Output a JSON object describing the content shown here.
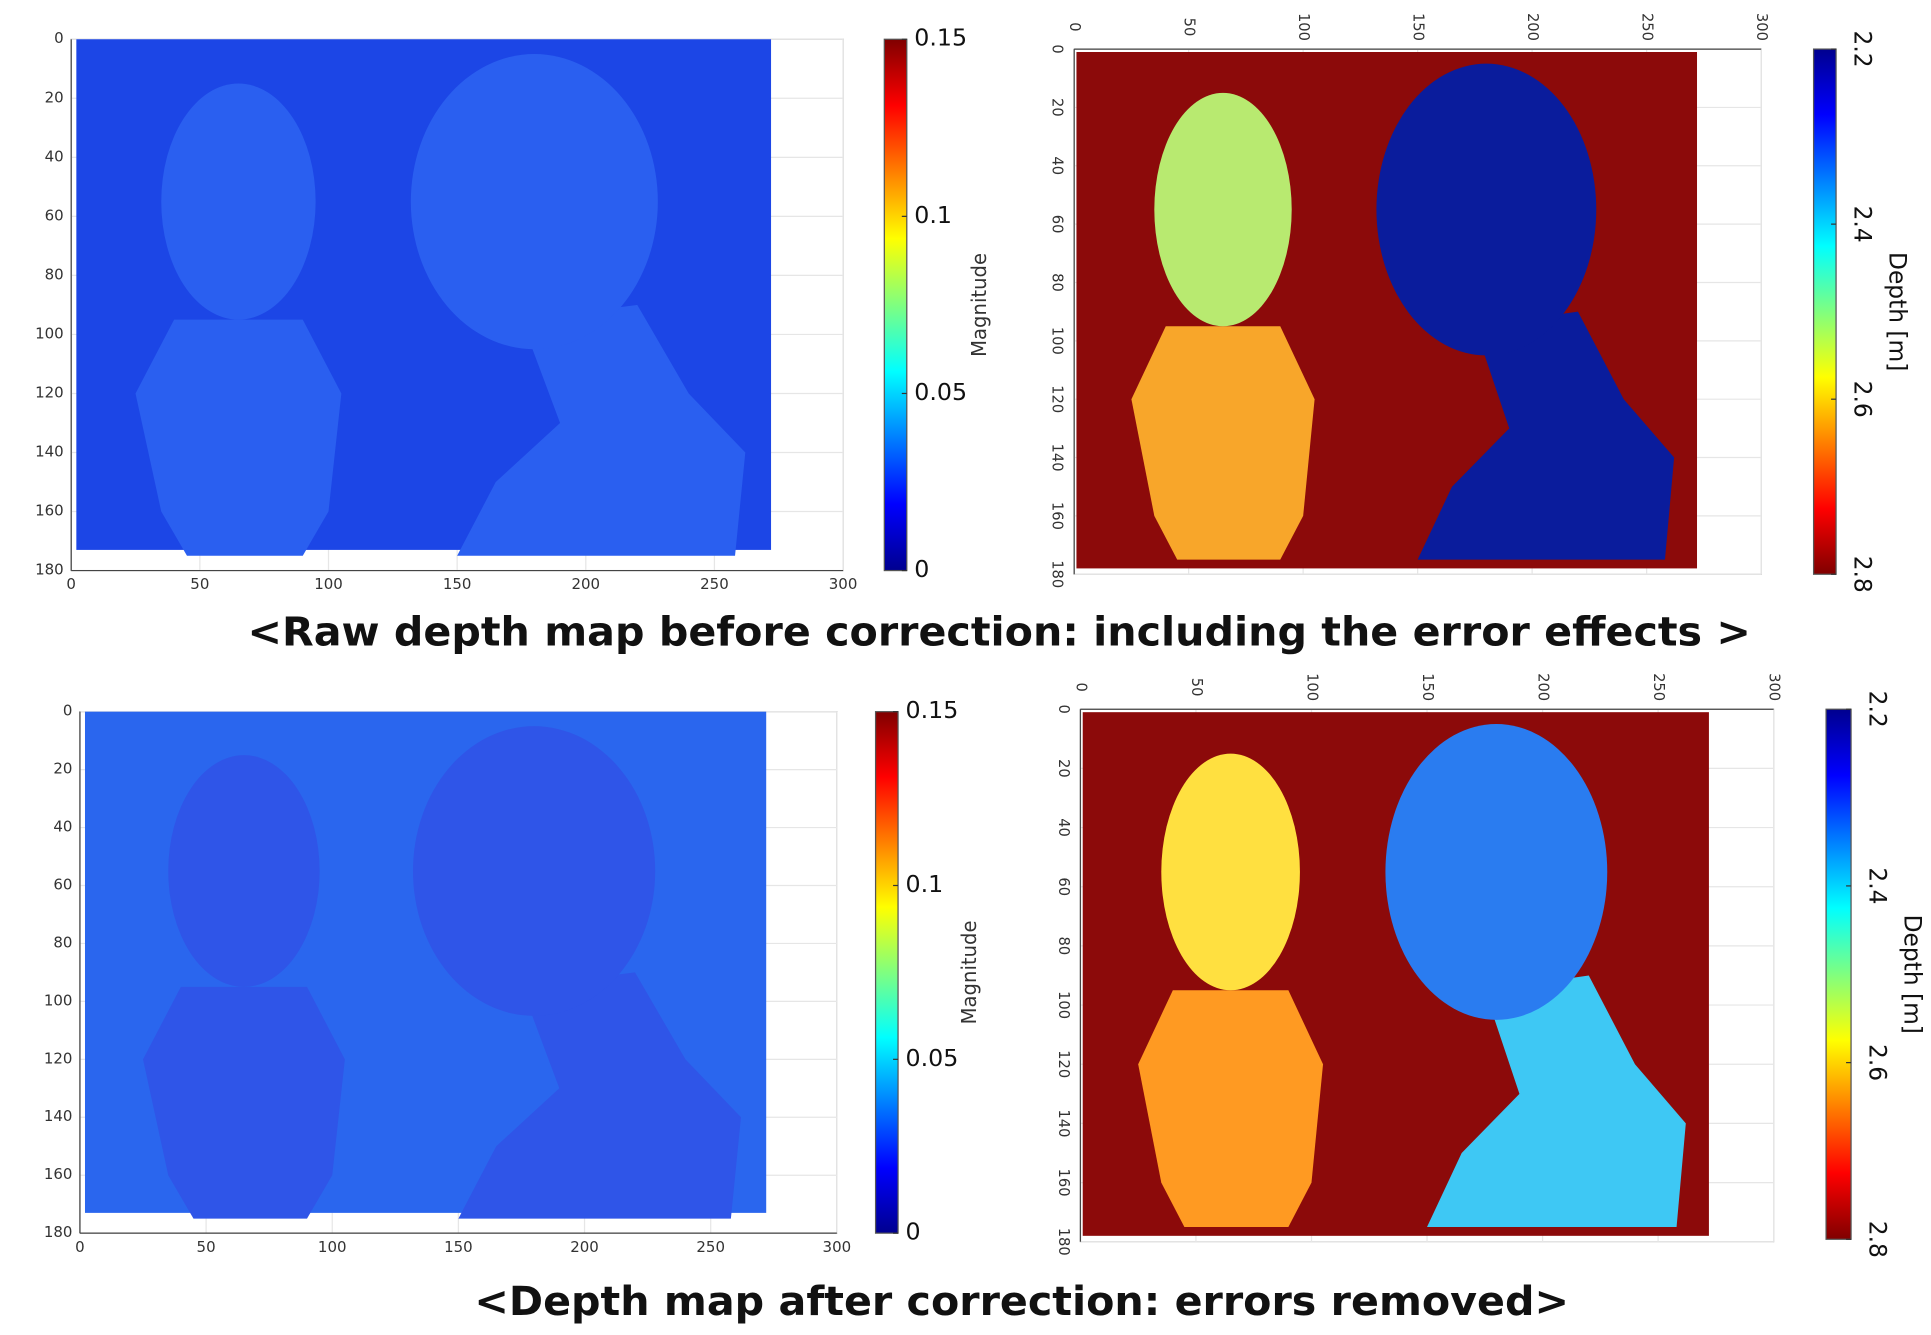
{
  "figures": [
    {
      "caption": "<Raw depth map before correction: including the error effects >",
      "magnitude_map": {
        "xlim": [
          0,
          300
        ],
        "ylim": [
          0,
          180
        ],
        "xticks": [
          0,
          50,
          100,
          150,
          200,
          250,
          300
        ],
        "yticks": [
          0,
          20,
          40,
          60,
          80,
          100,
          120,
          140,
          160,
          180
        ],
        "colorbar": {
          "label": "Magnitude",
          "lim": [
            0,
            0.15
          ],
          "ticks": [
            0,
            0.05,
            0.1,
            0.15
          ]
        }
      },
      "depth_map": {
        "xlim": [
          0,
          300
        ],
        "ylim": [
          0,
          180
        ],
        "xticks": [
          0,
          50,
          100,
          150,
          200,
          250,
          300
        ],
        "yticks": [
          0,
          20,
          40,
          60,
          80,
          100,
          120,
          140,
          160,
          180
        ],
        "colorbar": {
          "label": "Depth [m]",
          "lim": [
            2.8,
            2.2
          ],
          "ticks": [
            2.2,
            2.4,
            2.6,
            2.8
          ]
        }
      }
    },
    {
      "caption": "<Depth map after correction: errors removed>",
      "magnitude_map": {
        "xlim": [
          0,
          300
        ],
        "ylim": [
          0,
          180
        ],
        "xticks": [
          0,
          50,
          100,
          150,
          200,
          250,
          300
        ],
        "yticks": [
          0,
          20,
          40,
          60,
          80,
          100,
          120,
          140,
          160,
          180
        ],
        "colorbar": {
          "label": "Magnitude",
          "lim": [
            0,
            0.15
          ],
          "ticks": [
            0,
            0.05,
            0.1,
            0.15
          ]
        }
      },
      "depth_map": {
        "xlim": [
          0,
          300
        ],
        "ylim": [
          0,
          180
        ],
        "xticks": [
          0,
          50,
          100,
          150,
          200,
          250,
          300
        ],
        "yticks": [
          0,
          20,
          40,
          60,
          80,
          100,
          120,
          140,
          160,
          180
        ],
        "colorbar": {
          "label": "Depth [m]",
          "lim": [
            2.8,
            2.2
          ],
          "ticks": [
            2.2,
            2.4,
            2.6,
            2.8
          ]
        }
      }
    }
  ]
}
